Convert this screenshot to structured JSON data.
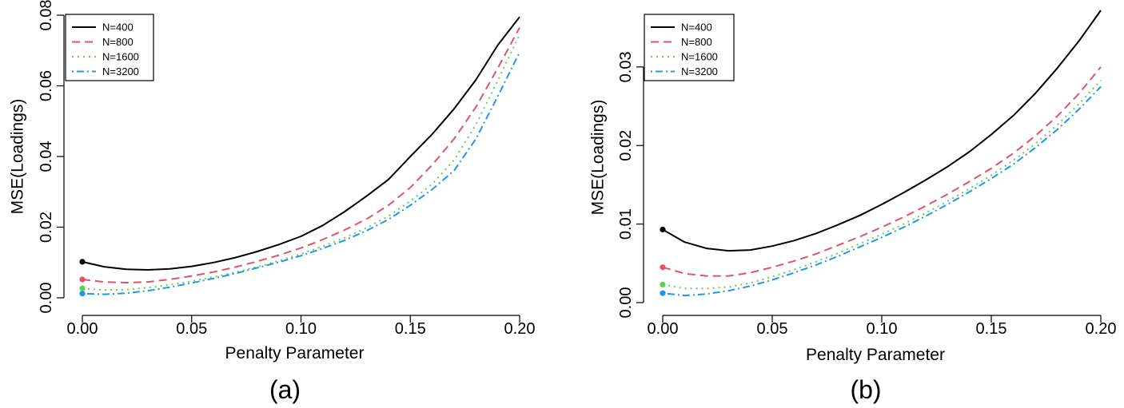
{
  "colors": {
    "N400": "#000000",
    "N800": "#DF536B",
    "N1600": "#61D04F",
    "N3200": "#2297E6"
  },
  "chart_data": [
    {
      "type": "line",
      "panel_label": "(a)",
      "xlabel": "Penalty Parameter",
      "ylabel": "MSE(Loadings)",
      "xlim": [
        0,
        0.2
      ],
      "ylim": [
        0,
        0.08
      ],
      "x_ticks": [
        "0.00",
        "0.05",
        "0.10",
        "0.15",
        "0.20"
      ],
      "y_ticks": [
        "0.00",
        "0.02",
        "0.04",
        "0.06",
        "0.08"
      ],
      "grid": false,
      "legend_position": "top-left",
      "x": [
        0.0,
        0.01,
        0.02,
        0.03,
        0.04,
        0.05,
        0.06,
        0.07,
        0.08,
        0.09,
        0.1,
        0.11,
        0.12,
        0.13,
        0.14,
        0.15,
        0.16,
        0.17,
        0.18,
        0.19,
        0.2
      ],
      "series": [
        {
          "name": "N=400",
          "color_key": "N400",
          "dash": "solid",
          "values": [
            0.0102,
            0.0088,
            0.0081,
            0.0079,
            0.0082,
            0.0089,
            0.01,
            0.0114,
            0.0131,
            0.0151,
            0.0174,
            0.0205,
            0.0244,
            0.0288,
            0.0335,
            0.04,
            0.0463,
            0.0535,
            0.0617,
            0.0715,
            0.0795
          ]
        },
        {
          "name": "N=800",
          "color_key": "N800",
          "dash": "dashed",
          "values": [
            0.0052,
            0.0045,
            0.0043,
            0.0045,
            0.0052,
            0.0062,
            0.0073,
            0.0087,
            0.0103,
            0.0121,
            0.0141,
            0.0165,
            0.0192,
            0.0223,
            0.0262,
            0.0312,
            0.0376,
            0.045,
            0.054,
            0.065,
            0.0765
          ]
        },
        {
          "name": "N=1600",
          "color_key": "N1600",
          "dash": "dotted",
          "values": [
            0.0027,
            0.0022,
            0.0023,
            0.0029,
            0.0037,
            0.0047,
            0.0059,
            0.0072,
            0.0088,
            0.0105,
            0.0124,
            0.0146,
            0.017,
            0.0198,
            0.0231,
            0.0274,
            0.0322,
            0.039,
            0.049,
            0.0615,
            0.0745
          ]
        },
        {
          "name": "N=3200",
          "color_key": "N3200",
          "dash": "dotdash",
          "values": [
            0.0012,
            0.001,
            0.0013,
            0.002,
            0.003,
            0.0042,
            0.0055,
            0.0069,
            0.0085,
            0.0101,
            0.0119,
            0.014,
            0.0163,
            0.019,
            0.0222,
            0.0262,
            0.0307,
            0.036,
            0.045,
            0.057,
            0.0695
          ]
        }
      ]
    },
    {
      "type": "line",
      "panel_label": "(b)",
      "xlabel": "Penalty Parameter",
      "ylabel": "MSE(Loadings)",
      "xlim": [
        0,
        0.2
      ],
      "ylim": [
        0,
        0.037
      ],
      "x_ticks": [
        "0.00",
        "0.05",
        "0.10",
        "0.15",
        "0.20"
      ],
      "y_ticks": [
        "0.00",
        "0.01",
        "0.02",
        "0.03"
      ],
      "grid": false,
      "legend_position": "top-left",
      "x": [
        0.0,
        0.01,
        0.02,
        0.03,
        0.04,
        0.05,
        0.06,
        0.07,
        0.08,
        0.09,
        0.1,
        0.11,
        0.12,
        0.13,
        0.14,
        0.15,
        0.16,
        0.17,
        0.18,
        0.19,
        0.2
      ],
      "series": [
        {
          "name": "N=400",
          "color_key": "N400",
          "dash": "solid",
          "values": [
            0.0093,
            0.0077,
            0.0069,
            0.0066,
            0.0067,
            0.0072,
            0.0079,
            0.0088,
            0.0099,
            0.0111,
            0.0125,
            0.014,
            0.0156,
            0.0173,
            0.0192,
            0.0214,
            0.0238,
            0.0266,
            0.0298,
            0.0333,
            0.0372
          ]
        },
        {
          "name": "N=800",
          "color_key": "N800",
          "dash": "dashed",
          "values": [
            0.0045,
            0.0037,
            0.0034,
            0.0034,
            0.0038,
            0.0045,
            0.0053,
            0.0062,
            0.0073,
            0.0084,
            0.0096,
            0.0109,
            0.0123,
            0.0138,
            0.0154,
            0.0171,
            0.019,
            0.0212,
            0.0237,
            0.0266,
            0.03
          ]
        },
        {
          "name": "N=1600",
          "color_key": "N1600",
          "dash": "dotted",
          "values": [
            0.0023,
            0.0018,
            0.0018,
            0.002,
            0.0025,
            0.0033,
            0.0042,
            0.0052,
            0.0063,
            0.0075,
            0.0087,
            0.01,
            0.0114,
            0.0129,
            0.0145,
            0.0162,
            0.0181,
            0.0202,
            0.0226,
            0.0253,
            0.0283
          ]
        },
        {
          "name": "N=3200",
          "color_key": "N3200",
          "dash": "dotdash",
          "values": [
            0.0012,
            0.0009,
            0.0011,
            0.0015,
            0.0021,
            0.0029,
            0.0038,
            0.0048,
            0.0059,
            0.0071,
            0.0083,
            0.0096,
            0.011,
            0.0125,
            0.0141,
            0.0158,
            0.0176,
            0.0197,
            0.022,
            0.0246,
            0.0275
          ]
        }
      ]
    }
  ]
}
